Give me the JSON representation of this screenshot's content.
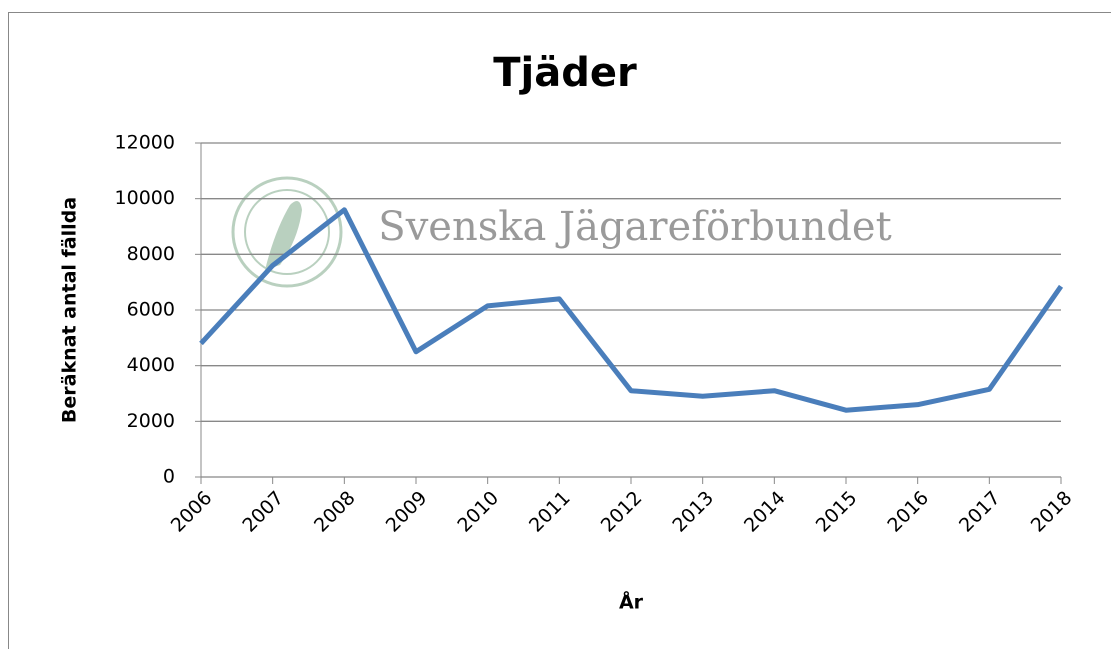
{
  "chart_data": {
    "type": "line",
    "title": "Tjäder",
    "watermark": "Svenska Jägareförbundet",
    "x_label": "År",
    "y_label": "Beräknat antal fällda",
    "categories": [
      "2006",
      "2007",
      "2008",
      "2009",
      "2010",
      "2011",
      "2012",
      "2013",
      "2014",
      "2015",
      "2016",
      "2017",
      "2018"
    ],
    "series": [
      {
        "name": "Tjäder",
        "color": "#4a7ebb",
        "values": [
          4800,
          7600,
          9600,
          4500,
          6150,
          6400,
          3100,
          2900,
          3100,
          2400,
          2600,
          3150,
          6850
        ]
      }
    ],
    "ylim": [
      0,
      12000
    ],
    "yticks": [
      0,
      2000,
      4000,
      6000,
      8000,
      10000,
      12000
    ],
    "grid": true
  }
}
